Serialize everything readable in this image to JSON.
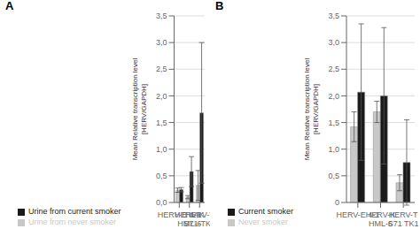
{
  "chart_data": [
    {
      "type": "bar",
      "title": "A",
      "categories": [
        "HERV-E 4-1",
        "HERV-K\nHML-6",
        "HERV-T\nS71-TK1"
      ],
      "series": [
        {
          "name": "Urine from never smoker",
          "color": "#c8c8c8",
          "values": [
            0.23,
            0.1,
            0.32
          ],
          "errors": [
            0.04,
            0.03,
            0.28
          ]
        },
        {
          "name": "Urine from current smoker",
          "color": "#1a1a1a",
          "values": [
            0.24,
            0.58,
            1.68
          ],
          "errors": [
            0.04,
            0.28,
            1.32
          ]
        }
      ],
      "ylabel": "Mean Relative transcription level\n[HERV/GAPDH]",
      "ylim": [
        0,
        3.5
      ],
      "yticks": [
        {
          "value": 0.0,
          "label": "0,0"
        },
        {
          "value": 0.5,
          "label": "0,5"
        },
        {
          "value": 1.0,
          "label": "1,0"
        },
        {
          "value": 1.5,
          "label": "1,5"
        },
        {
          "value": 2.0,
          "label": "2,0"
        },
        {
          "value": 2.5,
          "label": "2,5"
        },
        {
          "value": 3.0,
          "label": "3,0"
        },
        {
          "value": 3.5,
          "label": "3,5"
        }
      ],
      "grid": true
    },
    {
      "type": "bar",
      "title": "B",
      "categories": [
        "HERV-E 4-1",
        "HERV-K\nHML-6",
        "HERV-T\nS71 TK1"
      ],
      "series": [
        {
          "name": "Never smoker",
          "color": "#c8c8c8",
          "values": [
            1.42,
            1.7,
            0.37
          ],
          "errors": [
            0.28,
            0.2,
            0.15
          ]
        },
        {
          "name": "Current smoker",
          "color": "#1a1a1a",
          "values": [
            2.07,
            2.0,
            0.75
          ],
          "errors": [
            1.28,
            1.28,
            0.8
          ]
        }
      ],
      "ylabel": "Mean Relative transcription level\n[HERV/GAPDH]",
      "ylim": [
        0,
        3.5
      ],
      "yticks": [
        0,
        {
          "value": 0.5,
          "label": "0,5"
        },
        {
          "value": 1.0,
          "label": "1,0"
        },
        {
          "value": 1.5,
          "label": "1,5"
        },
        {
          "value": 2.0,
          "label": "2,0"
        },
        {
          "value": 2.5,
          "label": "2,5"
        },
        {
          "value": 3.0,
          "label": "3,0"
        },
        {
          "value": 3.5,
          "label": "3,5"
        }
      ],
      "grid": true
    }
  ]
}
